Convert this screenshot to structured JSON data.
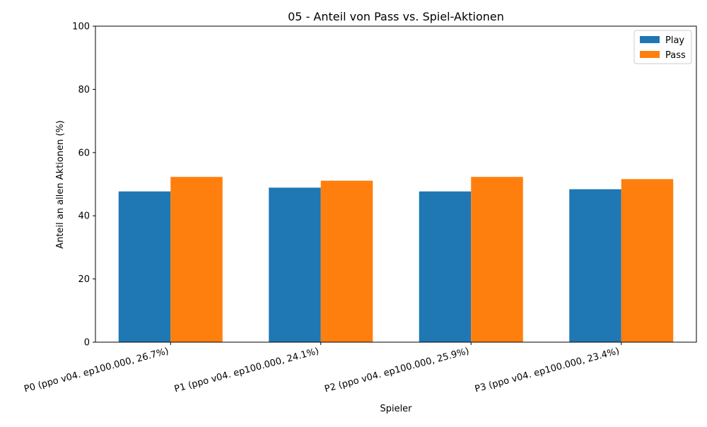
{
  "chart_data": {
    "type": "bar",
    "title": "05 - Anteil von Pass vs. Spiel-Aktionen",
    "xlabel": "Spieler",
    "ylabel": "Anteil an allen Aktionen (%)",
    "ylim": [
      0,
      100
    ],
    "yticks": [
      0,
      20,
      40,
      60,
      80,
      100
    ],
    "categories": [
      "P0 (ppo v04. ep100.000, 26.7%)",
      "P1 (ppo v04. ep100.000, 24.1%)",
      "P2 (ppo v04. ep100.000, 25.9%)",
      "P3 (ppo v04. ep100.000, 23.4%)"
    ],
    "series": [
      {
        "name": "Play",
        "color": "#1f77b4",
        "values": [
          47.7,
          48.9,
          47.7,
          48.4
        ]
      },
      {
        "name": "Pass",
        "color": "#ff7f0e",
        "values": [
          52.3,
          51.1,
          52.3,
          51.6
        ]
      }
    ],
    "grid": false,
    "legend_position": "top-right"
  }
}
